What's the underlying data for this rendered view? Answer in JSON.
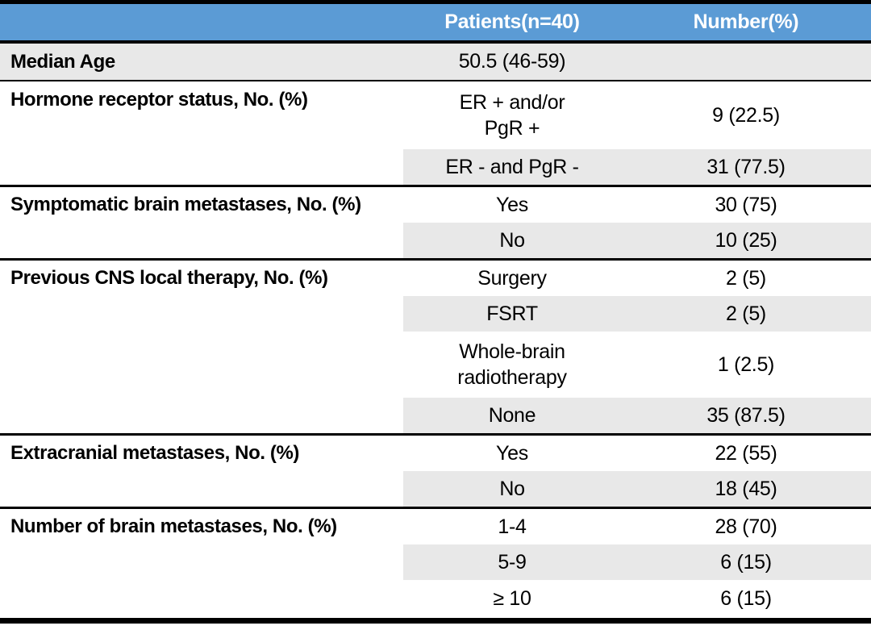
{
  "table": {
    "colors": {
      "header_bg": "#5b9bd5",
      "header_text": "#ffffff",
      "band_bg": "#e8e8e8",
      "border": "#000000"
    },
    "header": {
      "patients": "Patients(n=40)",
      "number": "Number(%)"
    },
    "rows": [
      {
        "label": "Median Age",
        "value": "50.5 (46-59)",
        "number": ""
      },
      {
        "label": "Hormone receptor status, No. (%)",
        "value": "ER + and/or\nPgR +",
        "number": "9 (22.5)"
      },
      {
        "label": "",
        "value": "ER - and PgR -",
        "number": "31 (77.5)"
      },
      {
        "label": "Symptomatic brain metastases, No. (%)",
        "value": "Yes",
        "number": "30 (75)"
      },
      {
        "label": "",
        "value": "No",
        "number": "10 (25)"
      },
      {
        "label": "Previous CNS local therapy, No. (%)",
        "value": "Surgery",
        "number": "2 (5)"
      },
      {
        "label": "",
        "value": "FSRT",
        "number": "2 (5)"
      },
      {
        "label": "",
        "value": "Whole-brain\nradiotherapy",
        "number": "1 (2.5)"
      },
      {
        "label": "",
        "value": "None",
        "number": "35 (87.5)"
      },
      {
        "label": "Extracranial metastases, No. (%)",
        "value": "Yes",
        "number": "22 (55)"
      },
      {
        "label": "",
        "value": "No",
        "number": "18 (45)"
      },
      {
        "label": "Number of brain metastases, No. (%)",
        "value": "1-4",
        "number": "28 (70)"
      },
      {
        "label": "",
        "value": "5-9",
        "number": "6 (15)"
      },
      {
        "label": "",
        "value": "≥ 10",
        "number": "6 (15)"
      }
    ]
  }
}
